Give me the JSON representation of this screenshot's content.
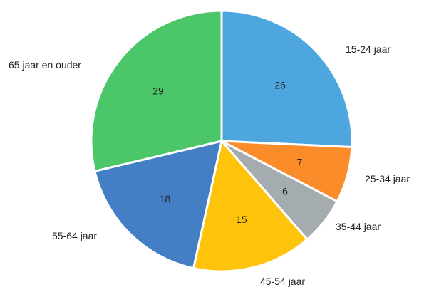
{
  "chart_data": {
    "type": "pie",
    "title": "",
    "categories": [
      "15-24 jaar",
      "25-34 jaar",
      "35-44 jaar",
      "45-54 jaar",
      "55-64 jaar",
      "65 jaar en ouder"
    ],
    "values": [
      26,
      7,
      6,
      15,
      18,
      29
    ],
    "colors": [
      "#4ea6df",
      "#fa8c2a",
      "#a4acb0",
      "#fdc40b",
      "#447fc6",
      "#4bc76a"
    ],
    "legend": "none",
    "labels_position": "outside"
  }
}
